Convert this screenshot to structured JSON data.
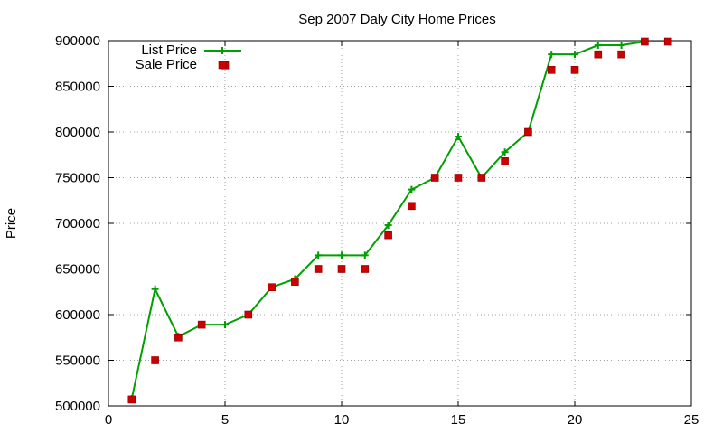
{
  "chart_data": {
    "type": "line",
    "title": "Sep 2007 Daly City Home Prices",
    "xlabel": "",
    "ylabel": "Price",
    "xlim": [
      0,
      25
    ],
    "ylim": [
      500000,
      900000
    ],
    "x_ticks": [
      0,
      5,
      10,
      15,
      20,
      25
    ],
    "y_ticks": [
      500000,
      550000,
      600000,
      650000,
      700000,
      750000,
      800000,
      850000,
      900000
    ],
    "grid": true,
    "legend_position": "top-left",
    "series": [
      {
        "name": "List Price",
        "style": "line with plus markers",
        "color": "#00a000",
        "x": [
          1,
          2,
          3,
          4,
          5,
          6,
          7,
          8,
          9,
          10,
          11,
          12,
          13,
          14,
          15,
          16,
          17,
          18,
          19,
          20,
          21,
          22,
          23,
          24
        ],
        "values": [
          508000,
          628000,
          576000,
          589000,
          589000,
          600000,
          630000,
          639000,
          665000,
          665000,
          665000,
          698000,
          737000,
          750000,
          795000,
          750000,
          778000,
          800000,
          885000,
          885000,
          895000,
          895000,
          899000,
          899000
        ]
      },
      {
        "name": "Sale Price",
        "style": "square markers",
        "color": "#cc0000",
        "x": [
          1,
          2,
          3,
          4,
          5,
          6,
          7,
          8,
          9,
          10,
          11,
          12,
          13,
          14,
          15,
          16,
          17,
          18,
          19,
          20,
          21,
          22,
          23,
          24
        ],
        "values": [
          507000,
          550000,
          575000,
          589000,
          873000,
          600000,
          630000,
          636000,
          650000,
          650000,
          650000,
          687000,
          719000,
          750000,
          750000,
          750000,
          768000,
          800000,
          868000,
          868000,
          885000,
          885000,
          899000,
          899000
        ]
      }
    ]
  }
}
